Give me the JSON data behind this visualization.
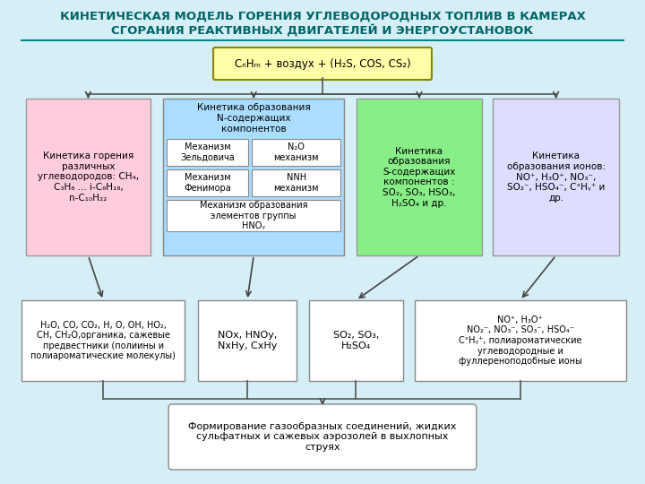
{
  "title_line1": "КИНЕТИЧЕСКАЯ МОДЕЛЬ ГОРЕНИЯ УГЛЕВОДОРОДНЫХ ТОПЛИВ В КАМЕРАХ",
  "title_line2": "СГОРАНИЯ РЕАКТИВНЫХ ДВИГАТЕЛЕЙ И ЭНЕРГОУСТАНОВОК",
  "title_color": "#006666",
  "bg_color": "#d6eef5",
  "title_bg": "#d6eef5",
  "top_box_text": "CₙHₘ + воздух + (H₂S, COS, CS₂)",
  "top_box_bg": "#ffffaa",
  "top_box_border": "#888800",
  "box1_text": "Кинетика горения\nразличных\nуглеводородов: CH₄,\nC₃H₈ ... i-C₈H₁₈,\nn-C₁₀H₂₂",
  "box1_bg": "#ffccdd",
  "box1_border": "#999999",
  "box2_title": "Кинетика образования\nN-содержащих\nкомпонентов",
  "box2_bg": "#aaddff",
  "box2_border": "#888888",
  "box2a_text": "Механизм\nЗельдовича",
  "box2b_text": "N₂O\nмеханизм",
  "box2c_text": "Механизм\nФенимора",
  "box2d_text": "NNH\nмеханизм",
  "box2e_text": "Механизм образования\nэлементов группы\nHNOᵧ",
  "box2_inner_bg": "#ffffff",
  "box2_inner_border": "#888888",
  "box3_text": "Кинетика\nобразования\nS-содержащих\nкомпонентов :\nSO₂, SO₃, HSO₃,\nH₂SO₄ и др.",
  "box3_bg": "#88ee88",
  "box3_border": "#999999",
  "box4_text": "Кинетика\nобразования ионов:\nNO⁺, H₃O⁺, NO₃⁻,\nSO₂⁻, HSO₄⁻, CˣHᵧ⁺ и\nдр.",
  "box4_bg": "#ddddff",
  "box4_border": "#999999",
  "bot1_text": "H₂O, CO, CO₂, H, O, OH, HO₂,\nCH, CH₂O,органика, сажевые\nпредвестники (полиины и\nполиароматические молекулы)",
  "bot1_bg": "#ffffff",
  "bot1_border": "#888888",
  "bot2_text": "NOx, HNOy,\nNxHy, CxHy",
  "bot2_bg": "#ffffff",
  "bot2_border": "#888888",
  "bot3_text": "SO₂, SO₃,\nH₂SO₄",
  "bot3_bg": "#ffffff",
  "bot3_border": "#888888",
  "bot4_text": "NO⁺, H₃O⁺\nNO₂⁻, NO₃⁻, SO₃⁻, HSO₄⁻\nCˣHᵧ⁺, полиароматические\nуглеводородные и\nфуллереноподобные ионы",
  "bot4_bg": "#ffffff",
  "bot4_border": "#888888",
  "final_box_text": "Формирование газообразных соединений, жидких\nсульфатных и сажевых аэрозолей в выхлопных\nструях",
  "final_box_bg": "#ffffff",
  "final_box_border": "#888888",
  "arrow_color": "#444444",
  "line_color": "#555555"
}
